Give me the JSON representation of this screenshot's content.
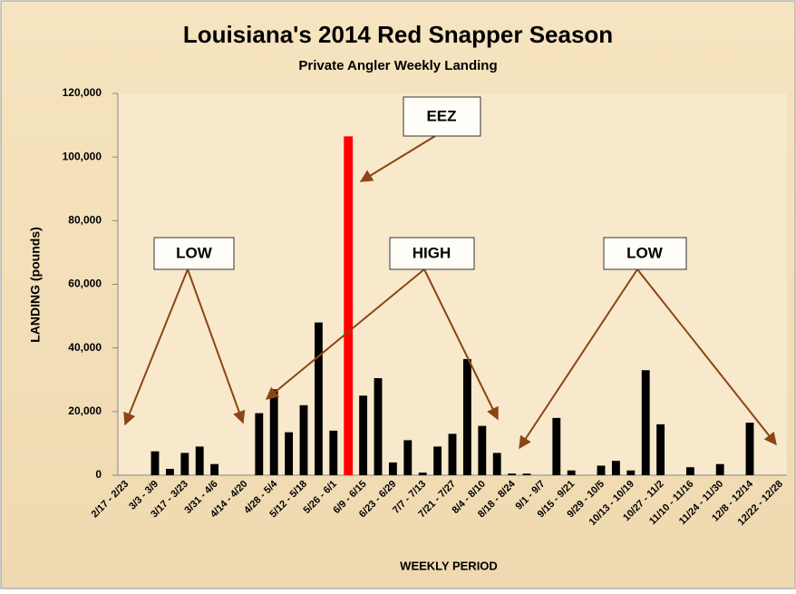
{
  "chart_data": {
    "type": "bar",
    "title": "Louisiana's 2014 Red Snapper Season",
    "subtitle": "Private Angler Weekly Landing",
    "x_label": "WEEKLY PERIOD",
    "y_label": "LANDING (pounds)",
    "categories": [
      "2/17 - 2/23",
      null,
      "3/3 - 3/9",
      null,
      "3/17 - 3/23",
      null,
      "3/31 - 4/6",
      null,
      "4/14 - 4/20",
      null,
      "4/28 - 5/4",
      null,
      "5/12 - 5/18",
      null,
      "5/26 - 6/1",
      null,
      "6/9 - 6/15",
      null,
      "6/23 - 6/29",
      null,
      "7/7 - 7/13",
      null,
      "7/21 - 7/27",
      null,
      "8/4 - 8/10",
      null,
      "8/18 - 8/24",
      null,
      "9/1 - 9/7",
      null,
      "9/15 - 9/21",
      null,
      "9/29 - 10/5",
      null,
      "10/13 - 10/19",
      null,
      "10/27 - 11/2",
      null,
      "11/10 - 11/16",
      null,
      "11/24 - 11/30",
      null,
      "12/8 - 12/14",
      null,
      "12/22 - 12/28"
    ],
    "values": [
      0,
      0,
      7500,
      2000,
      7000,
      9000,
      3500,
      0,
      0,
      19500,
      27000,
      13500,
      22000,
      48000,
      14000,
      106500,
      25000,
      30500,
      4000,
      11000,
      800,
      9000,
      13000,
      36500,
      15500,
      7000,
      500,
      500,
      0,
      18000,
      1500,
      0,
      3000,
      4500,
      1500,
      33000,
      16000,
      0,
      2500,
      0,
      3500,
      0,
      16500,
      0,
      0
    ],
    "colors": [
      "#000000",
      "#000000",
      "#000000",
      "#000000",
      "#000000",
      "#000000",
      "#000000",
      "#000000",
      "#000000",
      "#000000",
      "#000000",
      "#000000",
      "#000000",
      "#000000",
      "#000000",
      "#ff0000",
      "#000000",
      "#000000",
      "#000000",
      "#000000",
      "#000000",
      "#000000",
      "#000000",
      "#000000",
      "#000000",
      "#000000",
      "#000000",
      "#000000",
      "#000000",
      "#000000",
      "#000000",
      "#000000",
      "#000000",
      "#000000",
      "#000000",
      "#000000",
      "#000000",
      "#000000",
      "#000000",
      "#000000",
      "#000000",
      "#000000",
      "#000000",
      "#000000",
      "#000000"
    ],
    "ylim": [
      0,
      120000
    ],
    "yticks": [
      0,
      {
        "value": 20000,
        "label": "20,000"
      },
      {
        "value": 40000,
        "label": "40,000"
      },
      {
        "value": 60000,
        "label": "60,000"
      },
      {
        "value": 80000,
        "label": "80,000"
      },
      {
        "value": 100000,
        "label": "100,000"
      },
      {
        "value": 120000,
        "label": "120,000"
      }
    ],
    "grid": false,
    "annotations": [
      "EEZ",
      "LOW",
      "HIGH",
      "LOW"
    ]
  }
}
